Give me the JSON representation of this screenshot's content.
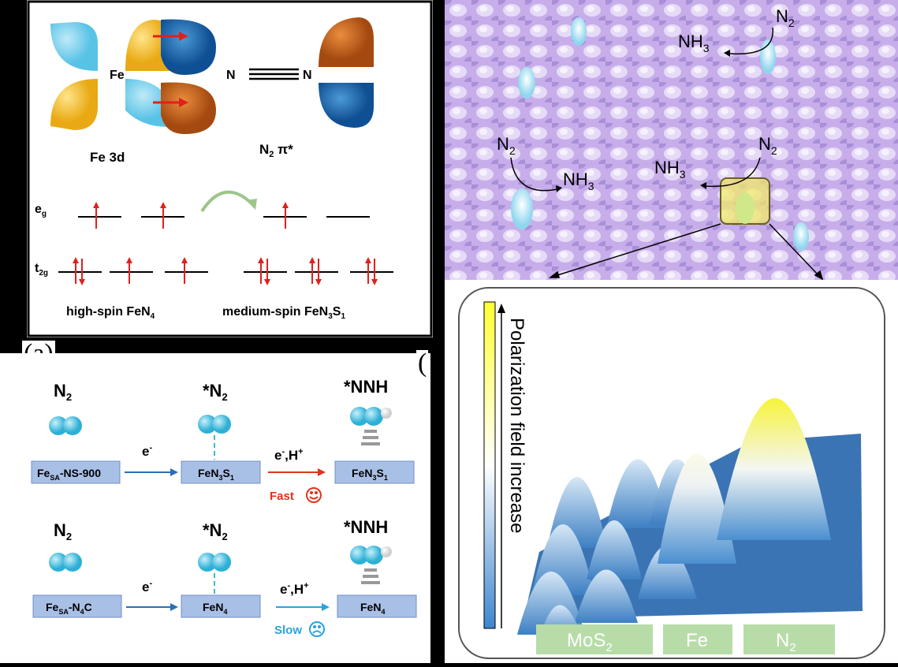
{
  "panel_a": {
    "label": "(a)",
    "fe": "Fe",
    "n": "N",
    "fe_orbital": "Fe 3d",
    "n2_orbital": "N",
    "n2_orbital_sub": "2",
    "n2_orbital_tail": " π*",
    "eg": "e",
    "eg_sub": "g",
    "t2g": "t",
    "t2g_sub": "2g",
    "high_spin": "high-spin FeN",
    "high_spin_sub": "4",
    "medium_spin": "medium-spin FeN",
    "medium_spin_sub1": "3",
    "medium_spin_s": "S",
    "medium_spin_sub2": "1"
  },
  "panel_mech": {
    "row1": {
      "n2": "N",
      "n2_sub": "2",
      "star_n2": "*N",
      "star_n2_sub": "2",
      "nnh": "*NNH",
      "box1": "Fe",
      "box1_sub": "SA",
      "box1_tail": "-NS-900",
      "box2": "FeN",
      "box2_sub1": "3",
      "box2_s": "S",
      "box2_sub2": "1",
      "box3": "FeN",
      "box3_sub1": "3",
      "box3_s": "S",
      "box3_sub2": "1",
      "e1": "e",
      "e1_sup": "-",
      "e2": "e",
      "e2_sup": "-",
      "e2_tail": ",H",
      "e2_sup2": "+",
      "speed": "Fast"
    },
    "row2": {
      "n2": "N",
      "n2_sub": "2",
      "star_n2": "*N",
      "star_n2_sub": "2",
      "nnh": "*NNH",
      "box1": "Fe",
      "box1_sub": "SA",
      "box1_tail": "-N",
      "box1_sub2": "4",
      "box1_end": "C",
      "box2": "FeN",
      "box2_sub": "4",
      "box3": "FeN",
      "box3_sub": "4",
      "e1": "e",
      "e1_sup": "-",
      "e2": "e",
      "e2_sup": "-",
      "e2_tail": ",H",
      "e2_sup2": "+",
      "speed": "Slow"
    },
    "colors": {
      "fast": "#e2341d",
      "slow": "#29a3dd",
      "box": "#a9c0e6",
      "molecule": "#3bb8d8"
    }
  },
  "panel_surface": {
    "n2_1": "N",
    "n2_1_sub": "2",
    "nh3_1": "NH",
    "nh3_1_sub": "3",
    "n2_2": "N",
    "n2_2_sub": "2",
    "nh3_2": "NH",
    "nh3_2_sub": "3",
    "n2_3": "N",
    "n2_3_sub": "2",
    "nh3_3": "NH",
    "nh3_3_sub": "3"
  },
  "panel_field": {
    "partial_label": "(",
    "axis_label": "Polarization field increase",
    "tags": [
      {
        "text": "MoS",
        "sub": "2"
      },
      {
        "text": "Fe",
        "sub": ""
      },
      {
        "text": "N",
        "sub": "2"
      }
    ],
    "colors": {
      "tag": "#b8dca8",
      "plane": "#3a74b4",
      "peak_top": "#ffff33"
    }
  }
}
